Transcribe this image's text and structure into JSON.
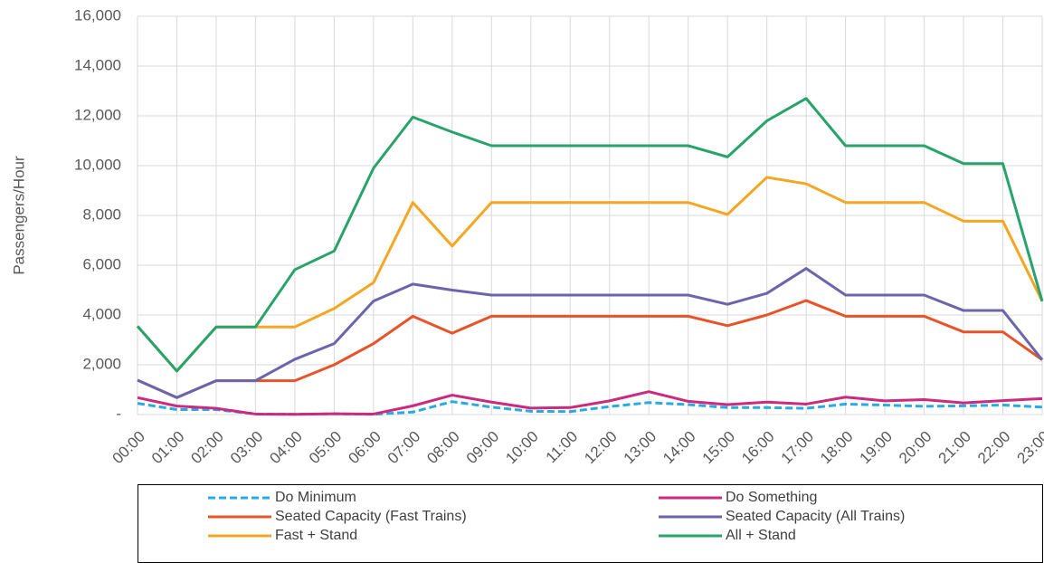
{
  "chart_data": {
    "type": "line",
    "y_label": "Passengers/Hour",
    "categories": [
      "00:00",
      "01:00",
      "02:00",
      "03:00",
      "04:00",
      "05:00",
      "06:00",
      "07:00",
      "08:00",
      "09:00",
      "10:00",
      "11:00",
      "12:00",
      "13:00",
      "14:00",
      "15:00",
      "16:00",
      "17:00",
      "18:00",
      "19:00",
      "20:00",
      "21:00",
      "22:00",
      "23:00"
    ],
    "series": [
      {
        "name": "Do Minimum",
        "color": "#29abe2",
        "dashed": true,
        "values": [
          450,
          200,
          200,
          20,
          10,
          30,
          10,
          100,
          520,
          300,
          130,
          120,
          320,
          480,
          400,
          280,
          280,
          250,
          420,
          380,
          330,
          350,
          380,
          300
        ]
      },
      {
        "name": "Do Something",
        "color": "#cc2a7f",
        "values": [
          680,
          340,
          250,
          20,
          10,
          30,
          20,
          350,
          780,
          500,
          260,
          280,
          550,
          920,
          530,
          400,
          500,
          420,
          700,
          550,
          600,
          470,
          560,
          640
        ]
      },
      {
        "name": "Seated Capacity (Fast Trains)",
        "color": "#e8542a",
        "values": [
          1380,
          680,
          1360,
          1360,
          1360,
          2000,
          2850,
          3950,
          3270,
          3950,
          3950,
          3950,
          3950,
          3950,
          3950,
          3570,
          4000,
          4580,
          3950,
          3950,
          3950,
          3320,
          3320,
          2200
        ]
      },
      {
        "name": "Seated Capacity (All Trains)",
        "color": "#6a65ad",
        "values": [
          1380,
          680,
          1360,
          1360,
          2220,
          2850,
          4560,
          5240,
          5000,
          4800,
          4800,
          4800,
          4800,
          4800,
          4800,
          4430,
          4870,
          5870,
          4800,
          4800,
          4800,
          4180,
          4180,
          2200
        ]
      },
      {
        "name": "Fast + Stand",
        "color": "#f5a623",
        "values": [
          3550,
          1750,
          3520,
          3520,
          3520,
          4260,
          5300,
          8520,
          6770,
          8520,
          8520,
          8520,
          8520,
          8520,
          8520,
          8040,
          9530,
          9270,
          8520,
          8520,
          8520,
          7770,
          7770,
          4550
        ]
      },
      {
        "name": "All + Stand",
        "color": "#27a36b",
        "values": [
          3550,
          1750,
          3520,
          3520,
          5820,
          6570,
          9900,
          11950,
          11350,
          10800,
          10800,
          10800,
          10800,
          10800,
          10800,
          10350,
          11800,
          12700,
          10800,
          10800,
          10800,
          10080,
          10080,
          4550
        ]
      }
    ],
    "ylim": [
      0,
      16000
    ],
    "yticks": [
      {
        "value": 0,
        "label": "-"
      },
      {
        "value": 2000,
        "label": "2,000"
      },
      {
        "value": 4000,
        "label": "4,000"
      },
      {
        "value": 6000,
        "label": "6,000"
      },
      {
        "value": 8000,
        "label": "8,000"
      },
      {
        "value": 10000,
        "label": "10,000"
      },
      {
        "value": 12000,
        "label": "12,000"
      },
      {
        "value": 14000,
        "label": "14,000"
      },
      {
        "value": 16000,
        "label": "16,000"
      }
    ],
    "grid": true,
    "legend": "bottom"
  }
}
